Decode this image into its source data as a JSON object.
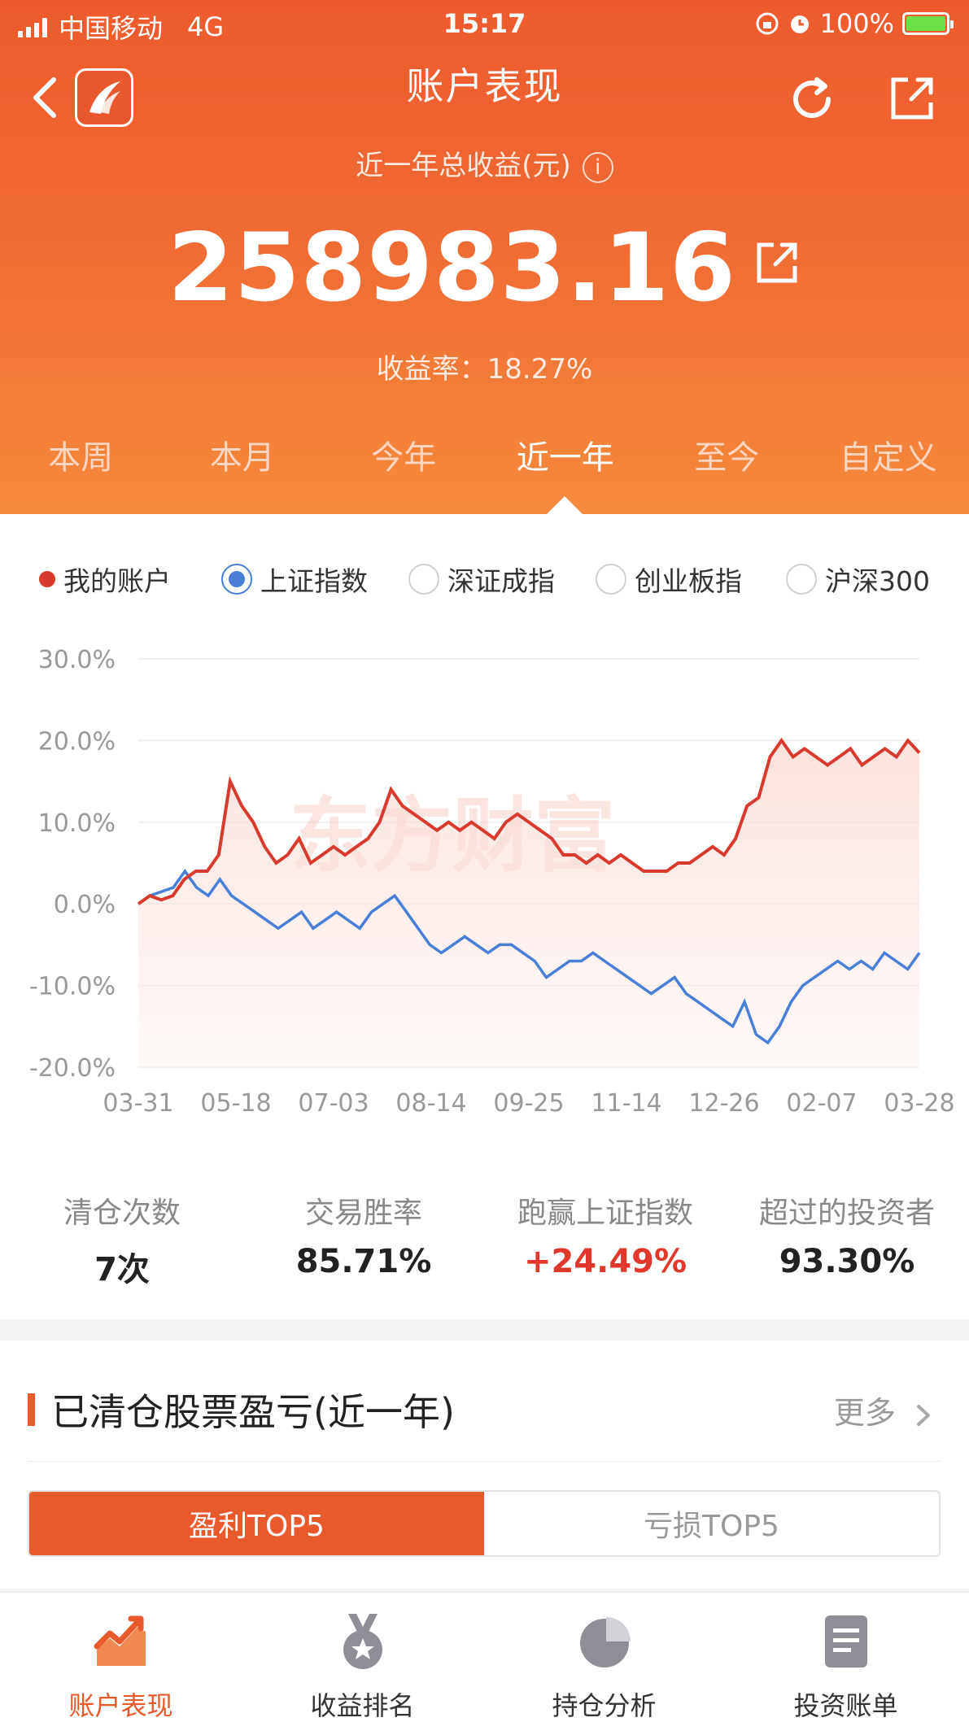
{
  "status_bar": {
    "carrier": "中国移动",
    "network": "4G",
    "time": "15:17",
    "battery": "100%"
  },
  "nav": {
    "title": "账户表现"
  },
  "summary": {
    "label": "近一年总收益(元)",
    "value": "258983.16",
    "rate": "收益率：18.27%",
    "info_icon": "i"
  },
  "tabs": [
    "本周",
    "本月",
    "今年",
    "近一年",
    "至今",
    "自定义"
  ],
  "active_tab": 3,
  "legend": {
    "mine": "我的账户",
    "options": [
      "上证指数",
      "深证成指",
      "创业板指",
      "沪深300"
    ],
    "selected": 0
  },
  "chart_data": {
    "type": "line",
    "x": [
      "03-31",
      "05-18",
      "07-03",
      "08-14",
      "09-25",
      "11-14",
      "12-26",
      "02-07",
      "03-28"
    ],
    "y_ticks": [
      "30.0%",
      "20.0%",
      "10.0%",
      "0.0%",
      "-10.0%",
      "-20.0%"
    ],
    "ylim": [
      -20,
      30
    ],
    "series": [
      {
        "name": "我的账户",
        "color": "#d83b2d",
        "values": [
          0,
          14,
          5,
          14,
          10,
          5,
          4,
          13,
          18.5
        ],
        "detail": [
          0,
          1,
          0.5,
          1,
          3,
          4,
          4,
          6,
          15,
          12,
          10,
          7,
          5,
          6,
          8,
          5,
          6,
          7,
          6,
          7,
          8,
          10,
          14,
          12,
          11,
          10,
          9,
          10,
          9,
          10,
          9,
          8,
          10,
          11,
          10,
          9,
          8,
          6,
          6,
          5,
          6,
          5,
          6,
          5,
          4,
          4,
          4,
          5,
          5,
          6,
          7,
          6,
          8,
          12,
          13,
          18,
          20,
          18,
          19,
          18,
          17,
          18,
          19,
          17,
          18,
          19,
          18,
          20,
          18.5
        ]
      },
      {
        "name": "上证指数",
        "color": "#4a7fd6",
        "values": [
          0,
          1,
          -2,
          0,
          -5,
          -8,
          -9,
          -17,
          -6
        ],
        "detail": [
          0,
          1,
          1.5,
          2,
          4,
          2,
          1,
          3,
          1,
          0,
          -1,
          -2,
          -3,
          -2,
          -1,
          -3,
          -2,
          -1,
          -2,
          -3,
          -1,
          0,
          1,
          -1,
          -3,
          -5,
          -6,
          -5,
          -4,
          -5,
          -6,
          -5,
          -5,
          -6,
          -7,
          -9,
          -8,
          -7,
          -7,
          -6,
          -7,
          -8,
          -9,
          -10,
          -11,
          -10,
          -9,
          -11,
          -12,
          -13,
          -14,
          -15,
          -12,
          -16,
          -17,
          -15,
          -12,
          -10,
          -9,
          -8,
          -7,
          -8,
          -7,
          -8,
          -6,
          -7,
          -8,
          -6
        ]
      }
    ],
    "watermark": "东方财富"
  },
  "stats": [
    {
      "label": "清仓次数",
      "value": "7次"
    },
    {
      "label": "交易胜率",
      "value": "85.71%"
    },
    {
      "label": "跑赢上证指数",
      "value": "+24.49%"
    },
    {
      "label": "超过的投资者",
      "value": "93.30%"
    }
  ],
  "closed": {
    "title": "已清仓股票盈亏(近一年)",
    "more": "更多",
    "seg_profit": "盈利TOP5",
    "seg_loss": "亏损TOP5"
  },
  "bottom_nav": [
    "账户表现",
    "收益排名",
    "持仓分析",
    "投资账单"
  ]
}
